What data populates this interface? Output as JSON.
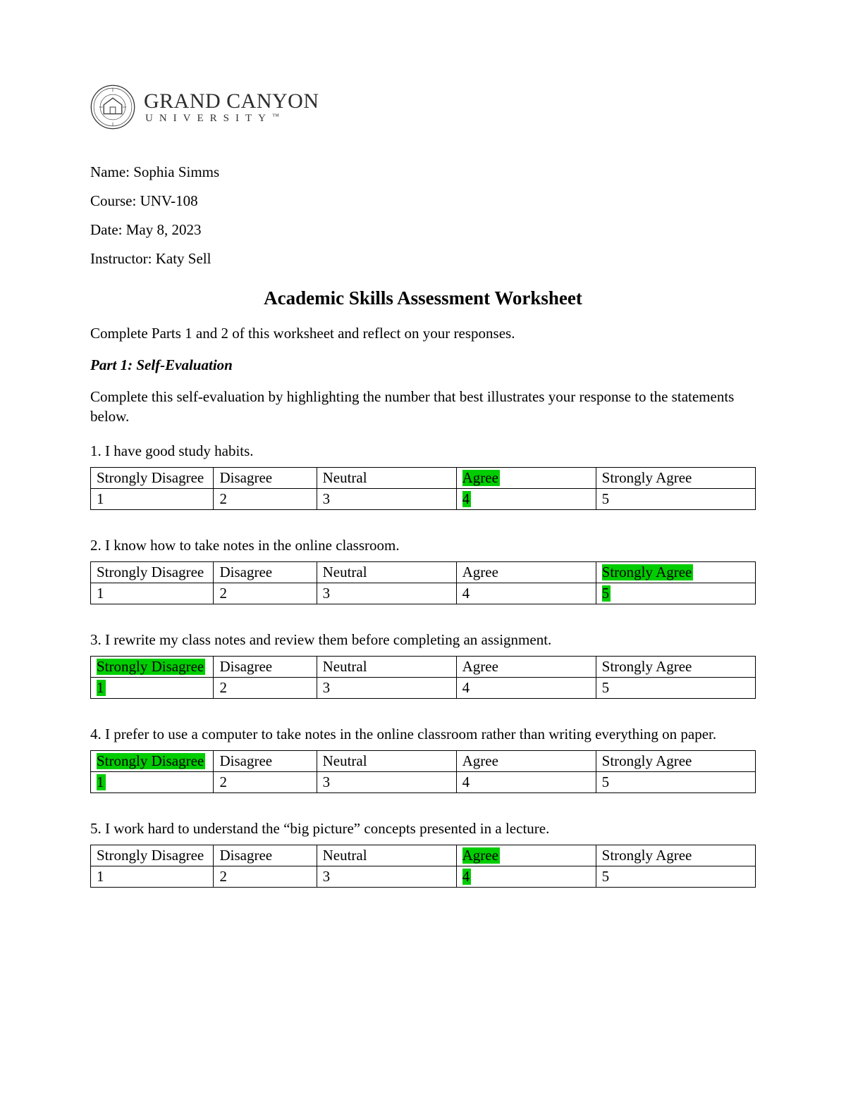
{
  "logo": {
    "main": "GRAND CANYON",
    "sub": "UNIVERSITY",
    "tm": "™",
    "seal_stroke": "#333333",
    "seal_fill": "#ffffff"
  },
  "meta": {
    "name_label": "Name: ",
    "name": "Sophia Simms",
    "course_label": "Course: ",
    "course": "UNV-108",
    "date_label": "Date: ",
    "date": "May 8, 2023",
    "instructor_label": "Instructor: ",
    "instructor": "Katy Sell"
  },
  "title": "Academic Skills Assessment Worksheet",
  "intro": "Complete Parts 1 and 2 of this worksheet and reflect on your responses.",
  "part1": {
    "heading": "Part 1: Self-Evaluation",
    "intro": "Complete this self-evaluation by highlighting the number that best illustrates your response to the statements below."
  },
  "scale": {
    "labels": [
      "Strongly Disagree",
      "Disagree",
      "Neutral",
      "Agree",
      "Strongly Agree"
    ],
    "values": [
      "1",
      "2",
      "3",
      "4",
      "5"
    ]
  },
  "highlight_color": "#00cd00",
  "questions": [
    {
      "n": "1",
      "text": "I have good study habits.",
      "highlight_index": 3
    },
    {
      "n": "2",
      "text": "I know how to take notes in the online classroom.",
      "highlight_index": 4
    },
    {
      "n": "3",
      "text": "I rewrite my class notes and review them before completing an assignment.",
      "highlight_index": 0
    },
    {
      "n": "4",
      "text": "I prefer to use a computer to take notes in the online classroom rather than writing everything on paper.",
      "highlight_index": 0
    },
    {
      "n": "5",
      "text": "I work hard to understand the “big picture” concepts presented in a lecture.",
      "highlight_index": 3
    }
  ]
}
